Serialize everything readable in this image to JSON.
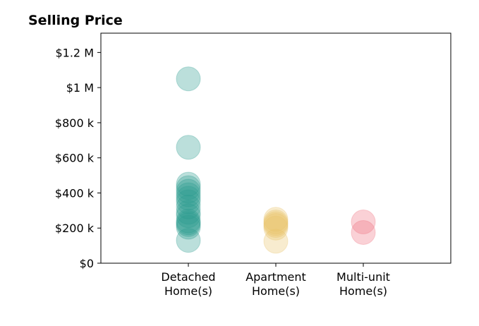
{
  "chart_data": {
    "type": "scatter",
    "title": "Selling Price",
    "xlabel": "",
    "ylabel": "",
    "categories": [
      "Detached\nHome(s)",
      "Apartment\nHome(s)",
      "Multi-unit\nHome(s)"
    ],
    "y_ticks": [
      {
        "value": 0,
        "label": "$0"
      },
      {
        "value": 200000,
        "label": "$200 k"
      },
      {
        "value": 400000,
        "label": "$400 k"
      },
      {
        "value": 600000,
        "label": "$600 k"
      },
      {
        "value": 800000,
        "label": "$800 k"
      },
      {
        "value": 1000000,
        "label": "$1 M"
      },
      {
        "value": 1200000,
        "label": "$1.2 M"
      }
    ],
    "ylim": [
      0,
      1310000
    ],
    "xlim": [
      -1,
      3
    ],
    "grid": false,
    "legend": "none",
    "series": [
      {
        "category": "Detached\nHome(s)",
        "color": "#2a9d8f",
        "values": [
          130000,
          205000,
          220000,
          230000,
          240000,
          270000,
          290000,
          320000,
          350000,
          370000,
          390000,
          410000,
          430000,
          450000,
          660000,
          1050000
        ]
      },
      {
        "category": "Apartment\nHome(s)",
        "color": "#e9c46a",
        "values": [
          125000,
          200000,
          215000,
          225000,
          235000,
          250000
        ]
      },
      {
        "category": "Multi-unit\nHome(s)",
        "color": "#ef6f7f",
        "values": [
          175000,
          235000
        ]
      }
    ]
  }
}
